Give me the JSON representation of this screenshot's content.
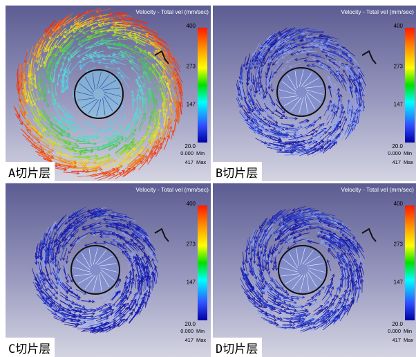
{
  "panels": [
    {
      "label": "A切片层",
      "title": "Velocity - Total vel (mm/sec)",
      "colorbar": {
        "ticks": [
          "400",
          "273",
          "147",
          "20.0"
        ],
        "min": {
          "value": "0.000",
          "label": "Min"
        },
        "max": {
          "value": "417",
          "label": "Max"
        }
      }
    },
    {
      "label": "B切片层",
      "title": "Velocity - Total vel (mm/sec)",
      "colorbar": {
        "ticks": [
          "400",
          "273",
          "147",
          "20.0"
        ],
        "min": {
          "value": "0.000",
          "label": "Min"
        },
        "max": {
          "value": "417",
          "label": "Max"
        }
      }
    },
    {
      "label": "C切片层",
      "title": "Velocity - Total vel (mm/sec)",
      "colorbar": {
        "ticks": [
          "400",
          "273",
          "147",
          "20.0"
        ],
        "min": {
          "value": "0.000",
          "label": "Min"
        },
        "max": {
          "value": "417",
          "label": "Max"
        }
      }
    },
    {
      "label": "D切片层",
      "title": "Velocity - Total vel (mm/sec)",
      "colorbar": {
        "ticks": [
          "400",
          "273",
          "147",
          "20.0"
        ],
        "min": {
          "value": "0.000",
          "label": "Min"
        },
        "max": {
          "value": "417",
          "label": "Max"
        }
      }
    }
  ]
}
